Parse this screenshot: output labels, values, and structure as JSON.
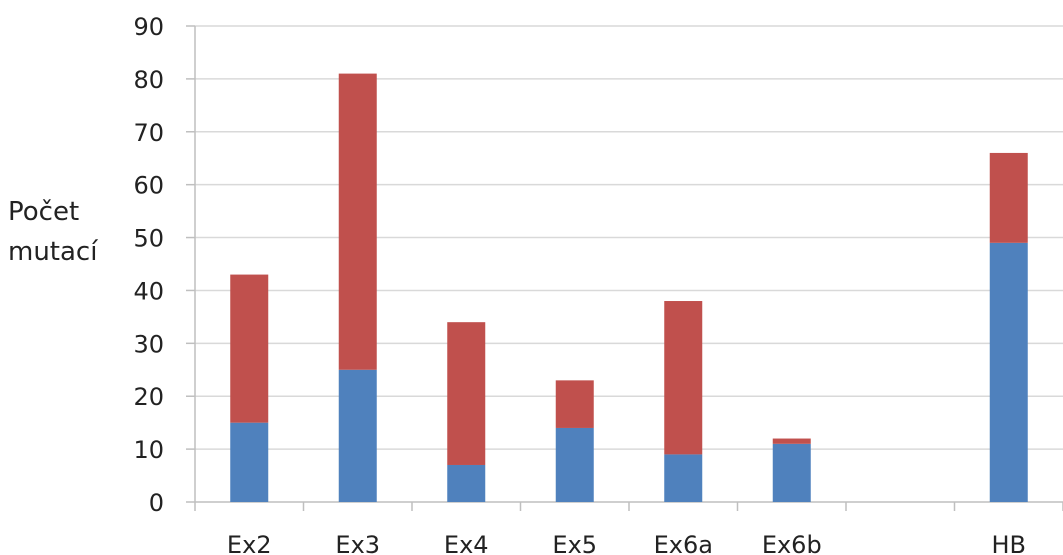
{
  "chart_data": {
    "type": "bar",
    "stacked": true,
    "categories": [
      "Ex2",
      "Ex3",
      "Ex4",
      "Ex5",
      "Ex6a",
      "Ex6b",
      "",
      "HB"
    ],
    "series": [
      {
        "color": "#4f81bd",
        "values": [
          15,
          25,
          7,
          14,
          9,
          11,
          0,
          49
        ]
      },
      {
        "color": "#c0504d",
        "values": [
          28,
          56,
          27,
          9,
          29,
          1,
          0,
          17
        ]
      }
    ],
    "ylabel_lines": [
      "Počet",
      "mutací"
    ],
    "yticks": [
      "0",
      "10",
      "20",
      "30",
      "40",
      "50",
      "60",
      "70",
      "80",
      "90"
    ],
    "ylim": [
      0,
      90
    ],
    "grid": true,
    "colors": {
      "grid": "#d9d9d9",
      "axis": "#bfbfbf",
      "text": "#222222"
    }
  }
}
